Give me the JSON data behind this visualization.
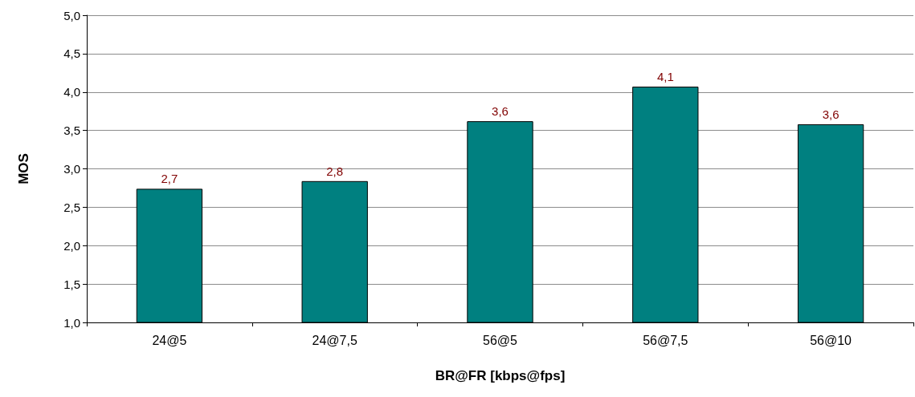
{
  "chart_data": {
    "type": "bar",
    "xlabel": "BR@FR [kbps@fps]",
    "ylabel": "MOS",
    "categories": [
      "24@5",
      "24@7,5",
      "56@5",
      "56@7,5",
      "56@10"
    ],
    "values": [
      2.74,
      2.84,
      3.62,
      4.07,
      3.58
    ],
    "value_labels": [
      "2,7",
      "2,8",
      "3,6",
      "4,1",
      "3,6"
    ],
    "color": "#008080",
    "ylim": [
      1,
      5
    ],
    "yticks": [
      {
        "value": 1,
        "label": "1,0"
      },
      {
        "value": 1.5,
        "label": "1,5"
      },
      {
        "value": 2,
        "label": "2,0"
      },
      {
        "value": 2.5,
        "label": "2,5"
      },
      {
        "value": 3,
        "label": "3,0"
      },
      {
        "value": 3.5,
        "label": "3,5"
      },
      {
        "value": 4,
        "label": "4,0"
      },
      {
        "value": 4.5,
        "label": "4,5"
      },
      {
        "value": 5,
        "label": "5,0"
      }
    ],
    "grid": "y"
  }
}
